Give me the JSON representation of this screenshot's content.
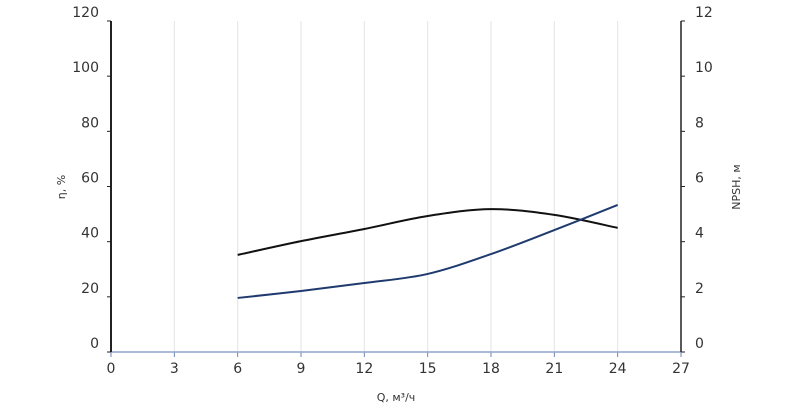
{
  "chart_data": {
    "type": "line",
    "xlabel": "Q, м³/ч",
    "ylabel": "η, %",
    "y2label": "NPSH, м",
    "x": [
      6,
      9,
      12,
      15,
      18,
      21,
      24
    ],
    "series": [
      {
        "color": "#111111",
        "values": [
          35.2,
          40.2,
          44.6,
          49.3,
          51.8,
          49.7,
          45.0
        ]
      },
      {
        "color": "#1f3a6e",
        "axis": "y2",
        "values": [
          1.96,
          2.21,
          2.5,
          2.83,
          3.55,
          4.42,
          5.33
        ]
      }
    ],
    "xlim": [
      0,
      27
    ],
    "xticks": [
      0,
      3,
      6,
      9,
      12,
      15,
      18,
      21,
      24,
      27
    ],
    "ylim": [
      0,
      120
    ],
    "yticks": [
      0,
      20,
      40,
      60,
      80,
      100,
      120
    ],
    "y2lim": [
      0,
      12
    ],
    "y2ticks": [
      0,
      2,
      4,
      6,
      8,
      10,
      12
    ],
    "grid": true
  }
}
